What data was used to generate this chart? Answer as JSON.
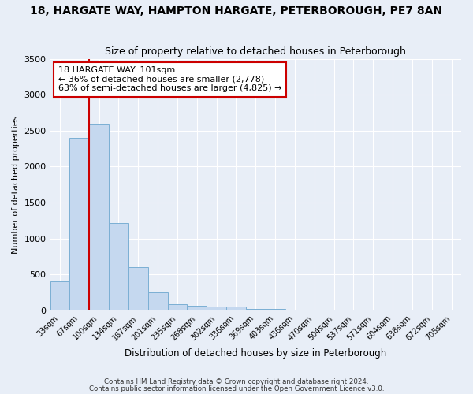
{
  "title": "18, HARGATE WAY, HAMPTON HARGATE, PETERBOROUGH, PE7 8AN",
  "subtitle": "Size of property relative to detached houses in Peterborough",
  "xlabel": "Distribution of detached houses by size in Peterborough",
  "ylabel": "Number of detached properties",
  "footer_line1": "Contains HM Land Registry data © Crown copyright and database right 2024.",
  "footer_line2": "Contains public sector information licensed under the Open Government Licence v3.0.",
  "annotation_line1": "18 HARGATE WAY: 101sqm",
  "annotation_line2": "← 36% of detached houses are smaller (2,778)",
  "annotation_line3": "63% of semi-detached houses are larger (4,825) →",
  "bar_categories": [
    "33sqm",
    "67sqm",
    "100sqm",
    "134sqm",
    "167sqm",
    "201sqm",
    "235sqm",
    "268sqm",
    "302sqm",
    "336sqm",
    "369sqm",
    "403sqm",
    "436sqm",
    "470sqm",
    "504sqm",
    "537sqm",
    "571sqm",
    "604sqm",
    "638sqm",
    "672sqm",
    "705sqm"
  ],
  "bar_values": [
    400,
    2400,
    2600,
    1220,
    600,
    250,
    90,
    60,
    55,
    50,
    20,
    20,
    0,
    0,
    0,
    0,
    0,
    0,
    0,
    0,
    0
  ],
  "bar_color": "#c5d8ef",
  "bar_edge_color": "#7bafd4",
  "vline_color": "#cc0000",
  "vline_pos": 1.5,
  "ylim": [
    0,
    3500
  ],
  "yticks": [
    0,
    500,
    1000,
    1500,
    2000,
    2500,
    3000,
    3500
  ],
  "bg_color": "#e8eef7",
  "plot_bg_color": "#e8eef7",
  "annotation_box_facecolor": "#ffffff",
  "annotation_box_edgecolor": "#cc0000",
  "title_fontsize": 10,
  "subtitle_fontsize": 9,
  "annotation_fontsize": 8
}
